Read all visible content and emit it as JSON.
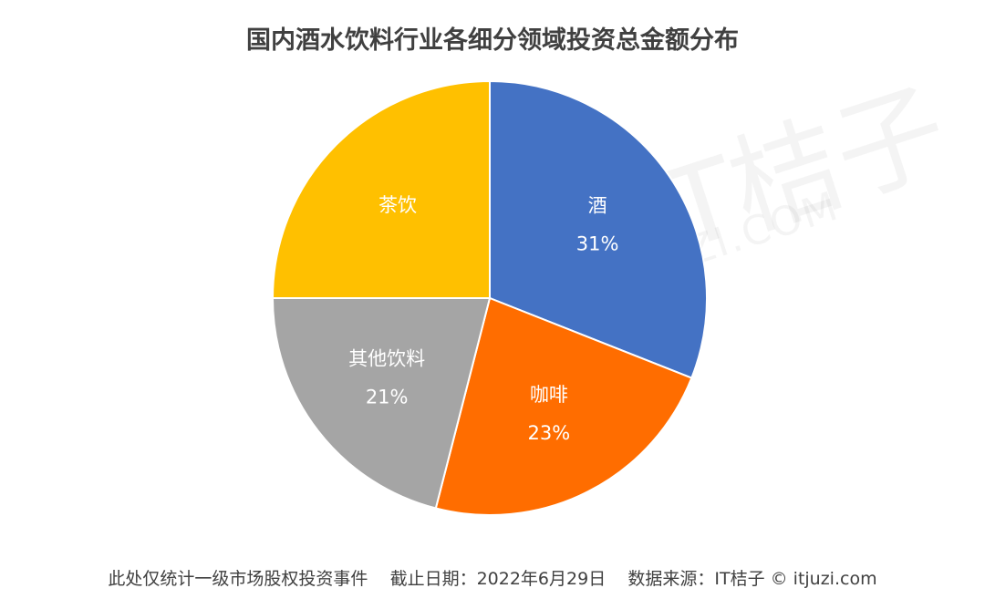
{
  "chart_data": {
    "type": "pie",
    "title": "国内酒水饮料行业各细分领域投资总金额分布",
    "slices": [
      {
        "label": "酒",
        "value": 31,
        "display": "31%",
        "color": "#4472C4"
      },
      {
        "label": "咖啡",
        "value": 23,
        "display": "23%",
        "color": "#FF6D00"
      },
      {
        "label": "其他饮料",
        "value": 21,
        "display": "21%",
        "color": "#A5A5A5"
      },
      {
        "label": "茶饮",
        "value": 25,
        "display": "",
        "color": "#FFC000"
      }
    ],
    "legend": "none",
    "data_labels": "inside"
  },
  "footer": {
    "note": "此处仅统计一级市场股权投资事件",
    "date": "截止日期：2022年6月29日",
    "source": "数据来源：IT桔子 © itjuzi.com"
  },
  "watermark": {
    "brand_zh": "IT桔子",
    "brand_en": "ITJUZI.COM"
  }
}
